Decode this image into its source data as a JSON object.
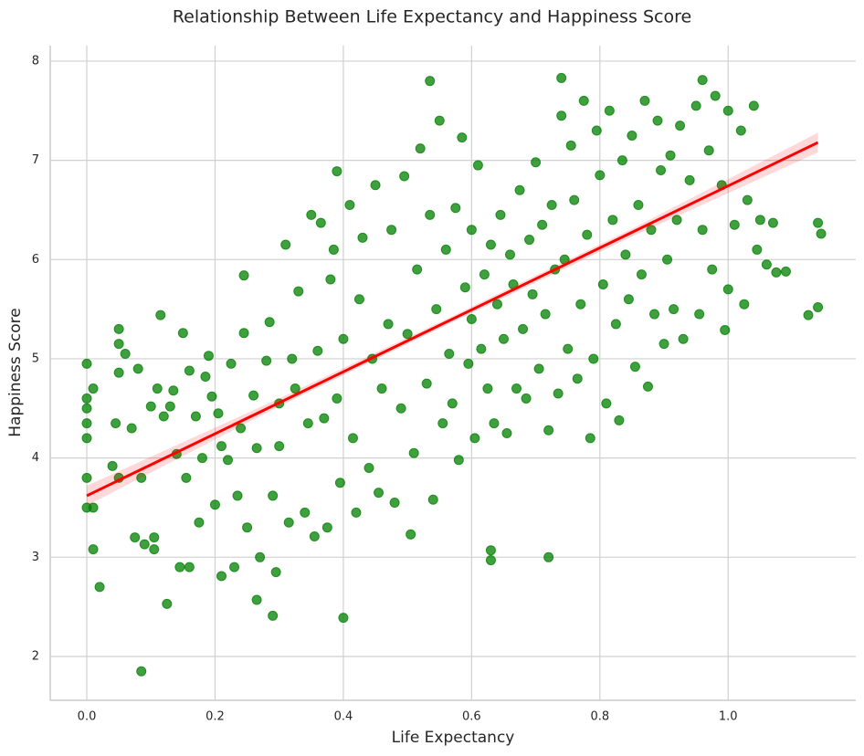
{
  "chart_data": {
    "type": "scatter",
    "title": "Relationship Between Life Expectancy and Happiness Score",
    "x_label": "Life Expectancy",
    "y_label": "Happiness Score",
    "color": "#008000",
    "grid": true,
    "xlim": [
      -0.057,
      1.199
    ],
    "ylim": [
      1.558,
      8.156
    ],
    "xticks": [
      {
        "value": 0,
        "label": "0.0"
      },
      0.2,
      0.4,
      0.6,
      0.8,
      {
        "value": 1,
        "label": "1.0"
      }
    ],
    "yticks": [
      2,
      3,
      4,
      5,
      6,
      7,
      8
    ],
    "x": [
      0,
      0,
      0,
      0,
      0,
      0,
      0,
      0.01,
      0.01,
      0.01,
      0.02,
      0.085,
      0.125,
      0.29,
      0.4,
      0.265,
      0.72,
      0.63,
      0.63,
      0.535,
      0.74,
      0.96,
      1.14,
      1.145,
      1.14,
      1.125,
      1.09,
      1.075,
      0.995,
      0.245,
      0.05,
      0.115,
      0.39,
      0.04,
      0.05,
      0.045,
      0.05,
      0.05,
      0.06,
      0.07,
      0.075,
      0.08,
      0.085,
      0.09,
      0.1,
      0.105,
      0.105,
      0.11,
      0.12,
      0.13,
      0.135,
      0.14,
      0.145,
      0.15,
      0.155,
      0.16,
      0.16,
      0.17,
      0.175,
      0.18,
      0.185,
      0.19,
      0.195,
      0.2,
      0.205,
      0.21,
      0.21,
      0.22,
      0.225,
      0.23,
      0.235,
      0.24,
      0.245,
      0.25,
      0.26,
      0.265,
      0.27,
      0.28,
      0.285,
      0.29,
      0.295,
      0.3,
      0.3,
      0.31,
      0.315,
      0.32,
      0.325,
      0.33,
      0.34,
      0.345,
      0.35,
      0.355,
      0.36,
      0.365,
      0.37,
      0.375,
      0.38,
      0.385,
      0.39,
      0.395,
      0.4,
      0.41,
      0.415,
      0.42,
      0.425,
      0.43,
      0.44,
      0.445,
      0.45,
      0.455,
      0.46,
      0.47,
      0.475,
      0.48,
      0.49,
      0.495,
      0.5,
      0.505,
      0.51,
      0.515,
      0.52,
      0.53,
      0.535,
      0.54,
      0.545,
      0.55,
      0.555,
      0.56,
      0.565,
      0.57,
      0.575,
      0.58,
      0.585,
      0.59,
      0.595,
      0.6,
      0.6,
      0.605,
      0.61,
      0.615,
      0.62,
      0.625,
      0.63,
      0.635,
      0.64,
      0.645,
      0.65,
      0.655,
      0.66,
      0.665,
      0.67,
      0.675,
      0.68,
      0.685,
      0.69,
      0.695,
      0.7,
      0.705,
      0.71,
      0.715,
      0.72,
      0.725,
      0.73,
      0.735,
      0.74,
      0.745,
      0.75,
      0.755,
      0.76,
      0.765,
      0.77,
      0.775,
      0.78,
      0.785,
      0.79,
      0.795,
      0.8,
      0.805,
      0.81,
      0.815,
      0.82,
      0.825,
      0.83,
      0.835,
      0.84,
      0.845,
      0.85,
      0.855,
      0.86,
      0.865,
      0.87,
      0.875,
      0.88,
      0.885,
      0.89,
      0.895,
      0.9,
      0.905,
      0.91,
      0.915,
      0.92,
      0.925,
      0.93,
      0.94,
      0.95,
      0.955,
      0.96,
      0.97,
      0.975,
      0.98,
      0.99,
      1.0,
      1.0,
      1.01,
      1.02,
      1.025,
      1.03,
      1.04,
      1.045,
      1.05,
      1.06,
      1.07
    ],
    "values": [
      4.95,
      4.6,
      4.5,
      4.35,
      4.2,
      3.8,
      3.5,
      3.5,
      4.7,
      3.08,
      2.7,
      1.85,
      2.53,
      2.41,
      2.39,
      2.57,
      3.0,
      2.97,
      3.07,
      7.8,
      7.83,
      7.81,
      6.37,
      6.26,
      5.52,
      5.44,
      5.88,
      5.87,
      5.29,
      5.84,
      5.3,
      5.44,
      6.89,
      3.92,
      3.8,
      4.35,
      4.86,
      5.15,
      5.05,
      4.3,
      3.2,
      4.9,
      3.8,
      3.13,
      4.52,
      3.2,
      3.08,
      4.7,
      4.42,
      4.52,
      4.68,
      4.04,
      2.9,
      5.26,
      3.8,
      4.88,
      2.9,
      4.42,
      3.35,
      4.0,
      4.82,
      5.03,
      4.62,
      3.53,
      4.45,
      2.81,
      4.12,
      3.98,
      4.95,
      2.9,
      3.62,
      4.3,
      5.26,
      3.3,
      4.63,
      4.1,
      3.0,
      4.98,
      5.37,
      3.62,
      2.85,
      4.55,
      4.12,
      6.15,
      3.35,
      5.0,
      4.7,
      5.68,
      3.45,
      4.35,
      6.45,
      3.21,
      5.08,
      6.37,
      4.4,
      3.3,
      5.8,
      6.1,
      4.6,
      3.75,
      5.2,
      6.55,
      4.2,
      3.45,
      5.6,
      6.22,
      3.9,
      5.0,
      6.75,
      3.65,
      4.7,
      5.35,
      6.3,
      3.55,
      4.5,
      6.84,
      5.25,
      3.23,
      4.05,
      5.9,
      7.12,
      4.75,
      6.45,
      3.58,
      5.5,
      7.4,
      4.35,
      6.1,
      5.05,
      4.55,
      6.52,
      3.98,
      7.23,
      5.72,
      4.95,
      6.3,
      5.4,
      4.2,
      6.95,
      5.1,
      5.85,
      4.7,
      6.15,
      4.35,
      5.55,
      6.45,
      5.2,
      4.25,
      6.05,
      5.75,
      4.7,
      6.7,
      5.3,
      4.6,
      6.2,
      5.65,
      6.98,
      4.9,
      6.35,
      5.45,
      4.28,
      6.55,
      5.9,
      4.65,
      7.45,
      6.0,
      5.1,
      7.15,
      6.6,
      4.8,
      5.55,
      7.6,
      6.25,
      4.2,
      5.0,
      7.3,
      6.85,
      5.75,
      4.55,
      7.5,
      6.4,
      5.35,
      4.38,
      7.0,
      6.05,
      5.6,
      7.25,
      4.92,
      6.55,
      5.85,
      7.6,
      4.72,
      6.3,
      5.45,
      7.4,
      6.9,
      5.15,
      6.0,
      7.05,
      5.5,
      6.4,
      7.35,
      5.2,
      6.8,
      7.55,
      5.45,
      6.3,
      7.1,
      5.9,
      7.65,
      6.75,
      5.7,
      7.5,
      6.35,
      7.3,
      5.55,
      6.6,
      7.55,
      6.1,
      6.4,
      5.95,
      6.37
    ],
    "trend": {
      "color": "#ff0000",
      "x": [
        0,
        1.14
      ],
      "values": [
        3.62,
        7.18
      ],
      "band_x": [
        0,
        0.3,
        0.57,
        0.85,
        1.14
      ],
      "band_lower": [
        3.52,
        4.52,
        5.37,
        6.23,
        7.08
      ],
      "band_upper": [
        3.72,
        4.6,
        5.43,
        6.31,
        7.28
      ]
    }
  }
}
